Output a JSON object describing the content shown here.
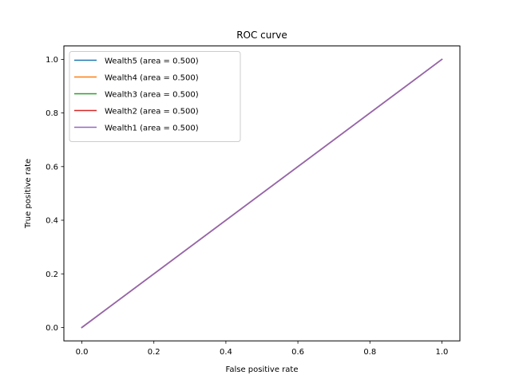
{
  "chart_data": {
    "type": "line",
    "title": "ROC curve",
    "xlabel": "False positive rate",
    "ylabel": "True positive rate",
    "xlim": [
      -0.05,
      1.05
    ],
    "ylim": [
      -0.05,
      1.05
    ],
    "xticks": [
      0.0,
      0.2,
      0.4,
      0.6,
      0.8,
      1.0
    ],
    "yticks": [
      0.0,
      0.2,
      0.4,
      0.6,
      0.8,
      1.0
    ],
    "xtick_labels": [
      "0.0",
      "0.2",
      "0.4",
      "0.6",
      "0.8",
      "1.0"
    ],
    "ytick_labels": [
      "0.0",
      "0.2",
      "0.4",
      "0.6",
      "0.8",
      "1.0"
    ],
    "grid": false,
    "legend_position": "upper-left",
    "series": [
      {
        "name": "Wealth5 (area = 0.500)",
        "color": "#1f77b4",
        "x": [
          0,
          1
        ],
        "y": [
          0,
          1
        ]
      },
      {
        "name": "Wealth4 (area = 0.500)",
        "color": "#ff7f0e",
        "x": [
          0,
          1
        ],
        "y": [
          0,
          1
        ]
      },
      {
        "name": "Wealth3 (area = 0.500)",
        "color": "#2ca02c",
        "x": [
          0,
          1
        ],
        "y": [
          0,
          1
        ]
      },
      {
        "name": "Wealth2 (area = 0.500)",
        "color": "#d62728",
        "x": [
          0,
          1
        ],
        "y": [
          0,
          1
        ]
      },
      {
        "name": "Wealth1 (area = 0.500)",
        "color": "#9467bd",
        "x": [
          0,
          1
        ],
        "y": [
          0,
          1
        ]
      }
    ]
  }
}
